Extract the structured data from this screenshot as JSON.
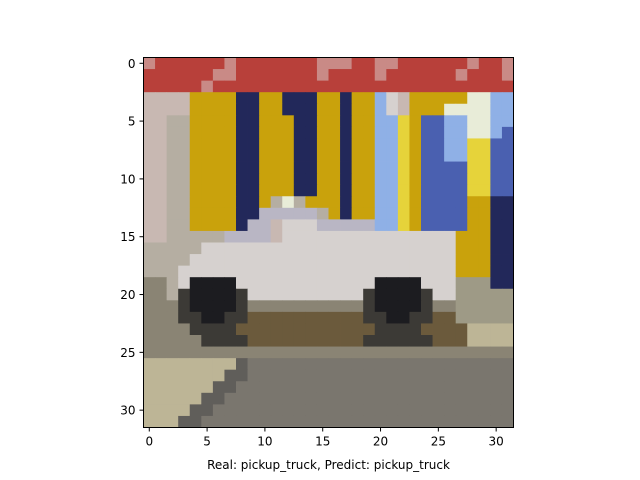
{
  "figure": {
    "xlabel": "Real: pickup_truck, Predict: pickup_truck"
  },
  "chart_data": {
    "type": "heatmap",
    "title": "",
    "xlabel": "Real: pickup_truck, Predict: pickup_truck",
    "ylabel": "",
    "xlim": [
      -0.5,
      31.5
    ],
    "ylim": [
      31.5,
      -0.5
    ],
    "x_ticks": [
      0,
      5,
      10,
      15,
      20,
      25,
      30
    ],
    "y_ticks": [
      0,
      5,
      10,
      15,
      20,
      25,
      30
    ],
    "grid": false,
    "image_size": [
      32,
      32
    ],
    "palette": {
      "R": "#b8403a",
      "P": "#c98a86",
      "S": "#c8b8b2",
      "W": "#d6d1cf",
      "G": "#b5aea2",
      "Y": "#c9a20c",
      "y": "#e6d33a",
      "N": "#22285a",
      "B": "#4a60b0",
      "L": "#8fb0e6",
      "C": "#e8ecd8",
      "V": "#b9b6c4",
      "K": "#1c1c20",
      "D": "#3c3a36",
      "O": "#6b5a3c",
      "M": "#8a8474",
      "T": "#7a766e",
      "F": "#605e5a",
      "E": "#bdb596",
      "Q": "#9e9a86"
    },
    "pixels": [
      "PRRRRRRPRRRRRRRPPPRRPPRRRRRRPRRP",
      "RRRRRRPPRRRRRRRPRRRRPRRRRRRPRRRP",
      "RRRRRPRRRRRRRRRRRRRRRRRRRRRRRRRR",
      "SSSSYYYYNNYYNNNYYNYYLWSYYYYYCCLL",
      "SSSSYYYYNNYYNNNYYNYYLWSYYYCCCCLL",
      "SSGGYYYYNNYYYNNYYNYYLLyYBBLLCCLL",
      "SSGGYYYYNNYYYNNYYNYYLLyYBBLLCCLB",
      "SSGGYYYYNNYYYNNYYNYYLLyYBBLLyyBB",
      "SSGGYYYYNNYYYNNYYNYYLLyYBBLLyyBB",
      "SSGGYYYYNNYYYNNYYNYYLLyYBBBByyBB",
      "SSGGYYYYNNYYYNNYYNYYLLyYBBBByyBB",
      "SSGGYYYYNNYYYNNYYNYYLLyYBBBByyBB",
      "SSGGYYYYNNYGCGYYYNYYLLyYBBBBYYNN",
      "SSGGYYYYNNVVVVVGYNYYLLyYBBBBYYNN",
      "SSGGYYYYNVVSWWWVVVVVLLyYBBBBYYNN",
      "SSGGGGGVVVVSWWWWWWWWWWWWWWWYYYNN",
      "GGGGGWWWWWWWWWWWWWWWWWWWWWWYYYNN",
      "GGGGWWWWWWWWWWWWWWWWWWWWWWWYYYNN",
      "GGGWWWWWWWWWWWWWWWWWWWWWWWWYYYNN",
      "MMGWKKKKWWWWWWWWWWWWKKKKWWWQQQNN",
      "MMGDKKKKDWWWWWWWWWWDKKKKDWWQQQQQ",
      "MMMDKKKKDMMMMMMMMMMDKKKKDMMQQQQQ",
      "MMMDDKKDDOOOOOOOOOODDKKDDOOQQQQQ",
      "MMMMDDDDOOOOOOOOOOOODDDDOOOOEEEE",
      "MMMMMDDDDOOOOOOOOOODDDDDDOOOEEEE",
      "MMMMMMMMMMMMMMMMMMMMMMMMMMMMMMMM",
      "EEEEEEEEFTTTTTTTTTTTTTTTTTTTTTTT",
      "EEEEEEEFFTTTTTTTTTTTTTTTTTTTTTTT",
      "EEEEEEFFTTTTTTTTTTTTTTTTTTTTTTTT",
      "EEEEEFFTTTTTTTTTTTTTTTTTTTTTTTTT",
      "EEEEFFTTTTTTTTTTTTTTTTTTTTTTTTTT",
      "EEEFFTTTTTTTTTTTTTTTTTTTTTTTTTTT"
    ]
  }
}
